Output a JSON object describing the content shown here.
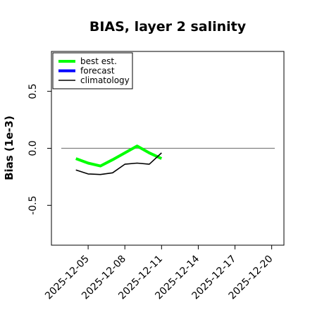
{
  "chart_data": {
    "type": "line",
    "title": "BIAS, layer 2 salinity",
    "xlabel": "",
    "ylabel": "Bias (1e-3)",
    "xlim": [
      "2025-12-02",
      "2025-12-21"
    ],
    "ylim": [
      -0.85,
      0.85
    ],
    "x_ticks": [
      "2025-12-05",
      "2025-12-08",
      "2025-12-11",
      "2025-12-14",
      "2025-12-17",
      "2025-12-20"
    ],
    "highlighted_tick": "2025-12-11",
    "highlight_color": "#228b22",
    "y_ticks": [
      -0.5,
      0.0,
      0.5
    ],
    "y_tick_labels": [
      "-0.5",
      "0.0",
      "0.5"
    ],
    "grid": false,
    "zero_line": true,
    "zero_line_color": "#808080",
    "legend_position": "top-left",
    "series": [
      {
        "name": "best est.",
        "color": "#00ff00",
        "x": [
          "2025-12-04",
          "2025-12-05",
          "2025-12-06",
          "2025-12-07",
          "2025-12-08",
          "2025-12-09",
          "2025-12-10",
          "2025-12-11"
        ],
        "values": [
          -0.09,
          -0.13,
          -0.155,
          -0.1,
          -0.04,
          0.02,
          -0.04,
          -0.09
        ]
      },
      {
        "name": "forecast",
        "color": "#0000ff",
        "x": [],
        "values": []
      },
      {
        "name": "climatology",
        "color": "#000000",
        "x": [
          "2025-12-04",
          "2025-12-05",
          "2025-12-06",
          "2025-12-07",
          "2025-12-08",
          "2025-12-09",
          "2025-12-10",
          "2025-12-11"
        ],
        "values": [
          -0.19,
          -0.225,
          -0.23,
          -0.215,
          -0.14,
          -0.13,
          -0.14,
          -0.04
        ]
      }
    ]
  }
}
